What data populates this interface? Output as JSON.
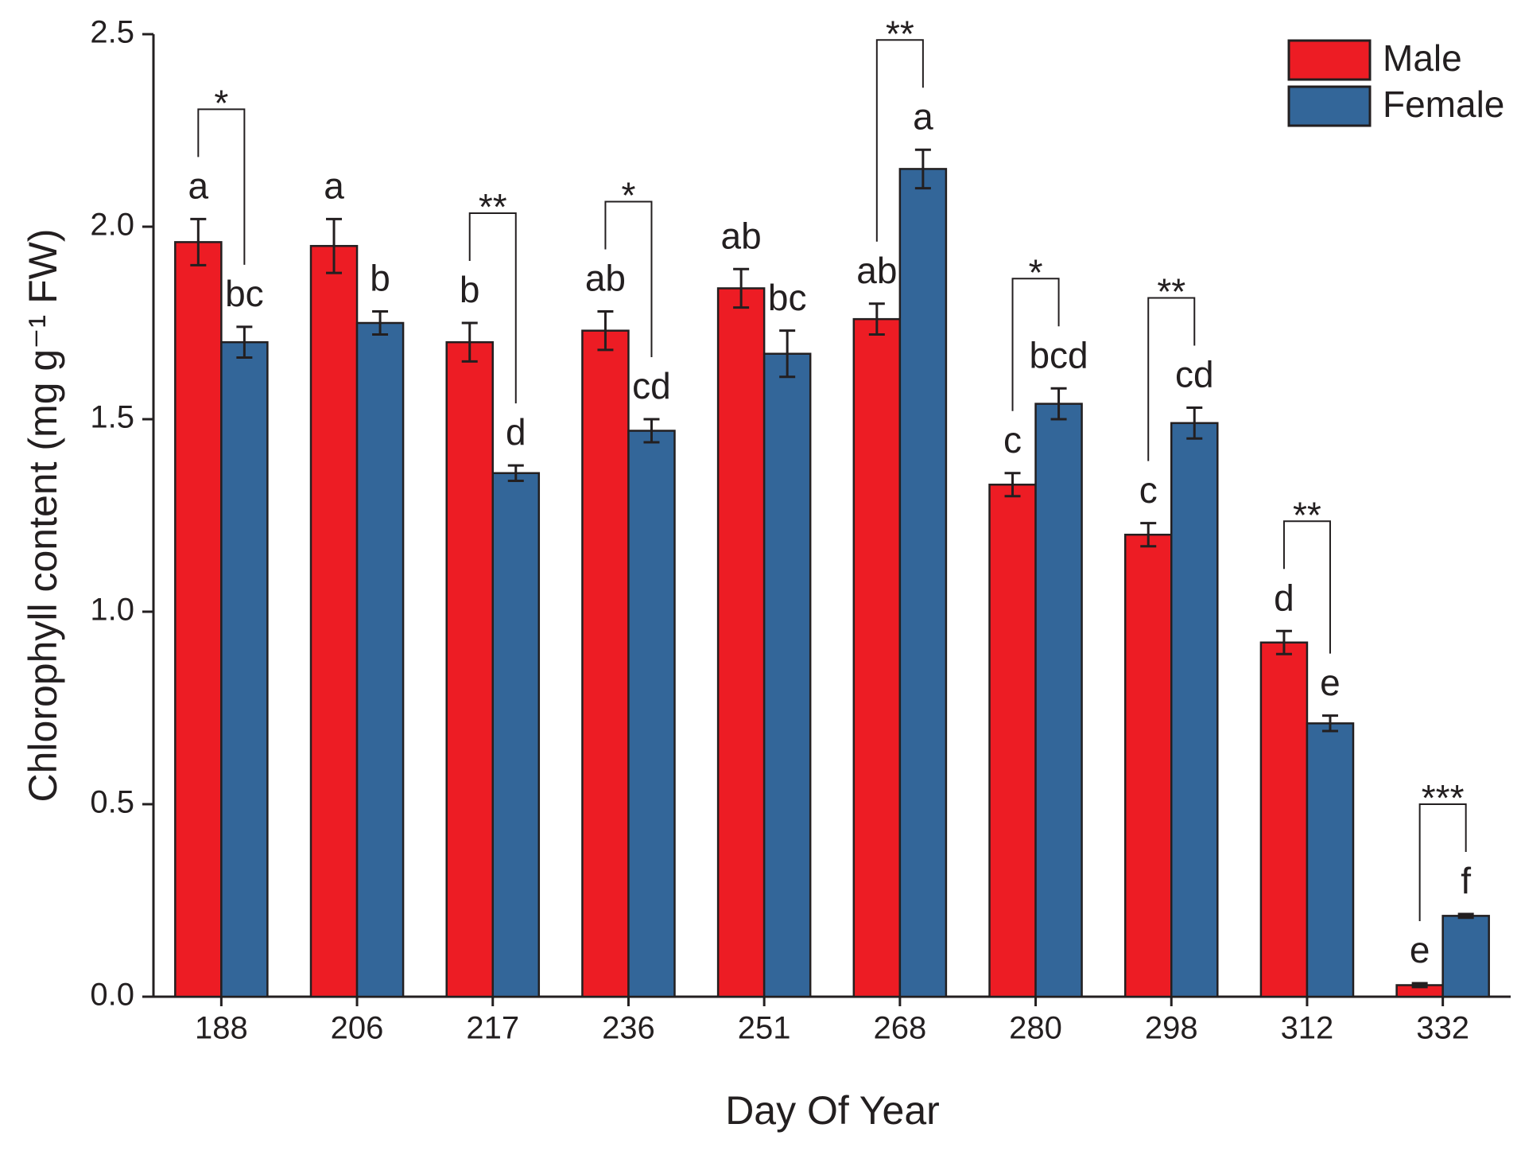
{
  "chart_data": {
    "type": "bar",
    "xlabel": "Day Of Year",
    "ylabel": "Chlorophyll content (mg g⁻¹ FW)",
    "categories": [
      "188",
      "206",
      "217",
      "236",
      "251",
      "268",
      "280",
      "298",
      "312",
      "332"
    ],
    "series": [
      {
        "name": "Male",
        "color": "#ed1c24",
        "values": [
          1.96,
          1.95,
          1.7,
          1.73,
          1.84,
          1.76,
          1.33,
          1.2,
          0.92,
          0.03
        ],
        "errors": [
          0.06,
          0.07,
          0.05,
          0.05,
          0.05,
          0.04,
          0.03,
          0.03,
          0.03,
          0.005
        ],
        "letters": [
          "a",
          "a",
          "b",
          "ab",
          "ab",
          "ab",
          "c",
          "c",
          "d",
          "e"
        ]
      },
      {
        "name": "Female",
        "color": "#336699",
        "values": [
          1.7,
          1.75,
          1.36,
          1.47,
          1.67,
          2.15,
          1.54,
          1.49,
          0.71,
          0.21
        ],
        "errors": [
          0.04,
          0.03,
          0.02,
          0.03,
          0.06,
          0.05,
          0.04,
          0.04,
          0.02,
          0.005
        ],
        "letters": [
          "bc",
          "b",
          "d",
          "cd",
          "bc",
          "a",
          "bcd",
          "cd",
          "e",
          "f"
        ]
      }
    ],
    "significance": [
      "*",
      null,
      "**",
      "*",
      null,
      "**",
      "*",
      "**",
      "**",
      "***"
    ],
    "ylim": [
      0,
      2.5
    ],
    "yticks": [
      {
        "value": 0,
        "label": "0.0"
      },
      0.5,
      {
        "value": 1,
        "label": "1.0"
      },
      1.5,
      {
        "value": 2,
        "label": "2.0"
      },
      2.5
    ],
    "legend": "top-right"
  }
}
